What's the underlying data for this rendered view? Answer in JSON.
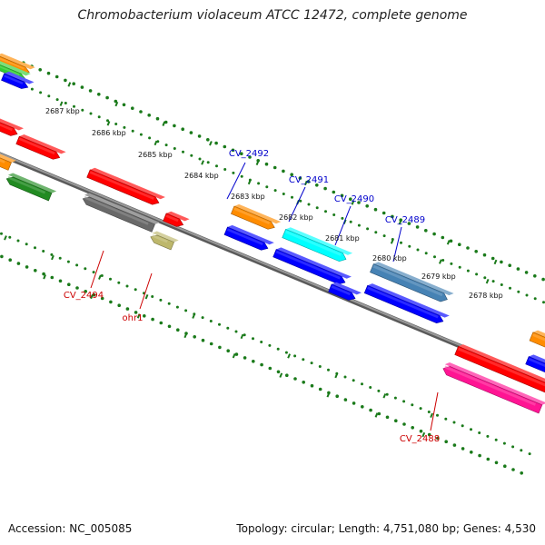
{
  "title": "Chromobacterium violaceum ATCC 12472, complete genome",
  "footer": {
    "accession": "Accession: NC_005085",
    "topology": "Topology: circular; Length: 4,751,080 bp; Genes: 4,530"
  },
  "colors": {
    "backbone": "#808080",
    "ticks": "#1a7a1a",
    "label_forward": "#0000cc",
    "label_reverse": "#cc0000"
  },
  "ruler": [
    {
      "label": "2687 kbp"
    },
    {
      "label": "2686 kbp"
    },
    {
      "label": "2685 kbp"
    },
    {
      "label": "2684 kbp"
    },
    {
      "label": "2683 kbp"
    },
    {
      "label": "2682 kbp"
    },
    {
      "label": "2681 kbp"
    },
    {
      "label": "2680 kbp"
    },
    {
      "label": "2679 kbp"
    },
    {
      "label": "2678 kbp"
    }
  ],
  "gene_labels": [
    {
      "name": "CV_2492",
      "strand": "forward"
    },
    {
      "name": "CV_2491",
      "strand": "forward"
    },
    {
      "name": "CV_2490",
      "strand": "forward"
    },
    {
      "name": "CV_2489",
      "strand": "forward"
    },
    {
      "name": "CV_2494",
      "strand": "reverse"
    },
    {
      "name": "ohr1",
      "strand": "reverse"
    },
    {
      "name": "CV_2488",
      "strand": "reverse"
    }
  ],
  "features": [
    {
      "color": "#ff8c00"
    },
    {
      "color": "#32cd32"
    },
    {
      "color": "#0000ff"
    },
    {
      "color": "#ff0000"
    },
    {
      "color": "#ff0000"
    },
    {
      "color": "#ff8c00"
    },
    {
      "color": "#228b22"
    },
    {
      "color": "#ff0000"
    },
    {
      "color": "#696969"
    },
    {
      "color": "#ff0000"
    },
    {
      "color": "#bdb76b"
    },
    {
      "color": "#ff8c00"
    },
    {
      "color": "#0000ff"
    },
    {
      "color": "#00ffff"
    },
    {
      "color": "#0000ff"
    },
    {
      "color": "#0000ff"
    },
    {
      "color": "#4682b4"
    },
    {
      "color": "#0000ff"
    },
    {
      "color": "#ff0000"
    },
    {
      "color": "#ff1493"
    },
    {
      "color": "#ff8c00"
    },
    {
      "color": "#0000ff"
    }
  ]
}
